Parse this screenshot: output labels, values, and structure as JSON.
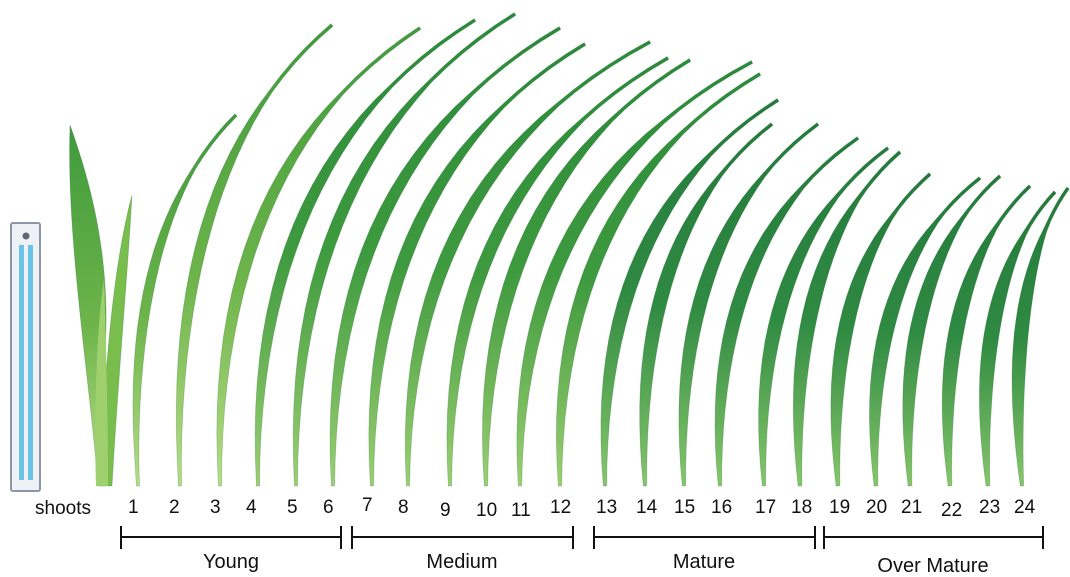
{
  "row_label": "shoots",
  "shoot_numbers": [
    "1",
    "2",
    "3",
    "4",
    "5",
    "6",
    "7",
    "8",
    "9",
    "10",
    "11",
    "12",
    "13",
    "14",
    "15",
    "16",
    "17",
    "18",
    "19",
    "20",
    "21",
    "22",
    "23",
    "24"
  ],
  "groups": [
    {
      "label": "Young"
    },
    {
      "label": "Medium"
    },
    {
      "label": "Mature"
    },
    {
      "label": "Over Mature"
    }
  ],
  "colors": {
    "leaf_light": "#7cbf4a",
    "leaf_mid": "#3f9a3c",
    "leaf_dark": "#237a3a",
    "ruler_blue": "#69c4e6"
  }
}
